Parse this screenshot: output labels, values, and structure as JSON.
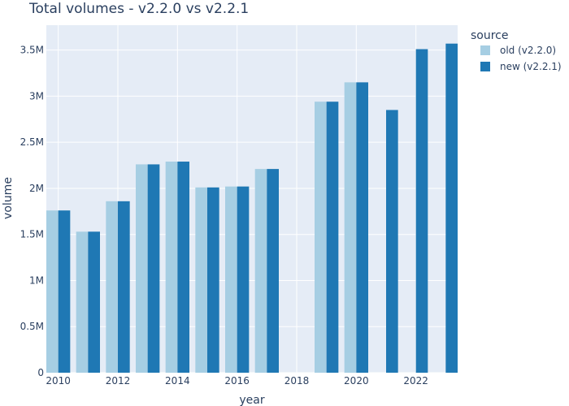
{
  "chart_data": {
    "type": "bar",
    "title": "Total volumes - v2.2.0 vs v2.2.1",
    "xlabel": "year",
    "ylabel": "volume",
    "x": [
      2010,
      2011,
      2012,
      2013,
      2014,
      2015,
      2016,
      2017,
      2019,
      2020,
      2021,
      2022,
      2023
    ],
    "x_ticks": [
      2010,
      2012,
      2014,
      2016,
      2018,
      2020,
      2022
    ],
    "x_tick_labels": [
      "2010",
      "2012",
      "2014",
      "2016",
      "2018",
      "2020",
      "2022"
    ],
    "y_ticks": [
      0,
      500000,
      1000000,
      1500000,
      2000000,
      2500000,
      3000000,
      3500000
    ],
    "y_tick_labels": [
      "0",
      "0.5M",
      "1M",
      "1.5M",
      "2M",
      "2.5M",
      "3M",
      "3.5M"
    ],
    "xlim": [
      2009.6,
      2023.4
    ],
    "ylim": [
      0,
      3770000
    ],
    "grid": true,
    "legend_title": "source",
    "legend_position": "right",
    "series": [
      {
        "name": "old (v2.2.0)",
        "color": "#a6cee3",
        "values": [
          1760000,
          1530000,
          1860000,
          2260000,
          2290000,
          2010000,
          2020000,
          2210000,
          2940000,
          3150000,
          null,
          null,
          null
        ]
      },
      {
        "name": "new (v2.2.1)",
        "color": "#1f78b4",
        "values": [
          1760000,
          1530000,
          1860000,
          2260000,
          2290000,
          2010000,
          2020000,
          2210000,
          2940000,
          3150000,
          2850000,
          3510000,
          3570000
        ]
      }
    ],
    "colors": {
      "plot_background": "#e5ecf6",
      "grid": "#ffffff",
      "text": "#2a3f5f"
    }
  }
}
